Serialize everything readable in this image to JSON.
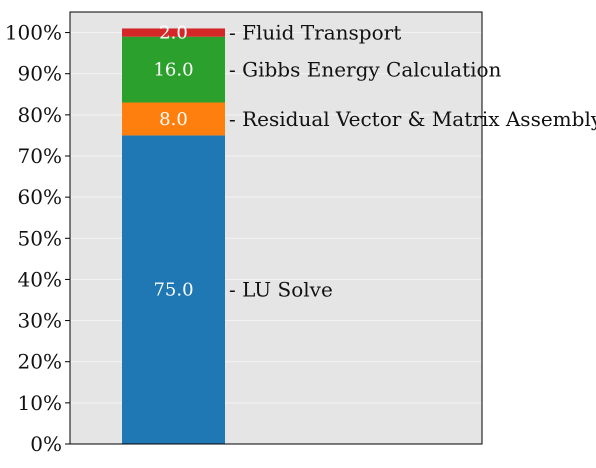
{
  "chart_data": {
    "type": "bar",
    "stacked": true,
    "ylim": [
      0,
      105
    ],
    "yticks": [
      0,
      10,
      20,
      30,
      40,
      50,
      60,
      70,
      80,
      90,
      100
    ],
    "ytick_suffix": "%",
    "grid": true,
    "background_color": "#e5e5e5",
    "grid_color": "#f4f4f4",
    "series": [
      {
        "name": "LU Solve",
        "value": 75.0,
        "label": "75.0",
        "color": "#1f77b4"
      },
      {
        "name": "Residual Vector & Matrix Assembly",
        "value": 8.0,
        "label": "8.0",
        "color": "#ff7f0e"
      },
      {
        "name": "Gibbs Energy Calculation",
        "value": 16.0,
        "label": "16.0",
        "color": "#2ca02c"
      },
      {
        "name": "Fluid Transport",
        "value": 2.0,
        "label": "2.0",
        "color": "#d62728"
      }
    ]
  }
}
